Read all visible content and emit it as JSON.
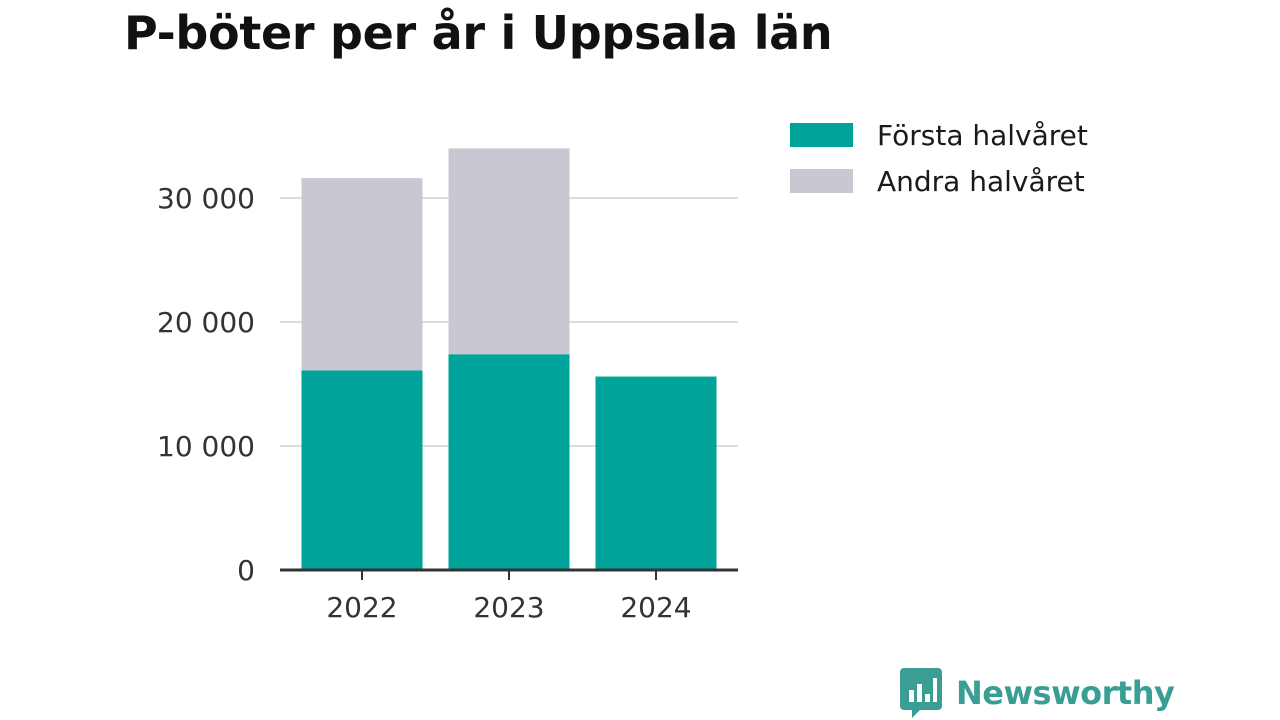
{
  "title": "P-böter per år i Uppsala län",
  "brand": {
    "name": "Newsworthy",
    "color": "#3a9e94",
    "icon": "bar-chart-speech-bubble-icon"
  },
  "colors": {
    "first_half": "#00a39a",
    "second_half": "#c8c7d2",
    "grid": "#dddddd",
    "axis": "#333333"
  },
  "chart_data": {
    "type": "bar",
    "stacked": true,
    "title": "P-böter per år i Uppsala län",
    "categories": [
      "2022",
      "2023",
      "2024"
    ],
    "series": [
      {
        "name": "Första halvåret",
        "values": [
          16100,
          17400,
          15600
        ]
      },
      {
        "name": "Andra halvåret",
        "values": [
          15500,
          16600,
          null
        ]
      }
    ],
    "yticks": [
      0,
      10000,
      20000,
      30000
    ],
    "ytick_labels": [
      "0",
      "10 000",
      "20 000",
      "30 000"
    ],
    "ylim": [
      0,
      34000
    ],
    "xlabel": "",
    "ylabel": "",
    "grid": true,
    "legend_position": "right"
  }
}
